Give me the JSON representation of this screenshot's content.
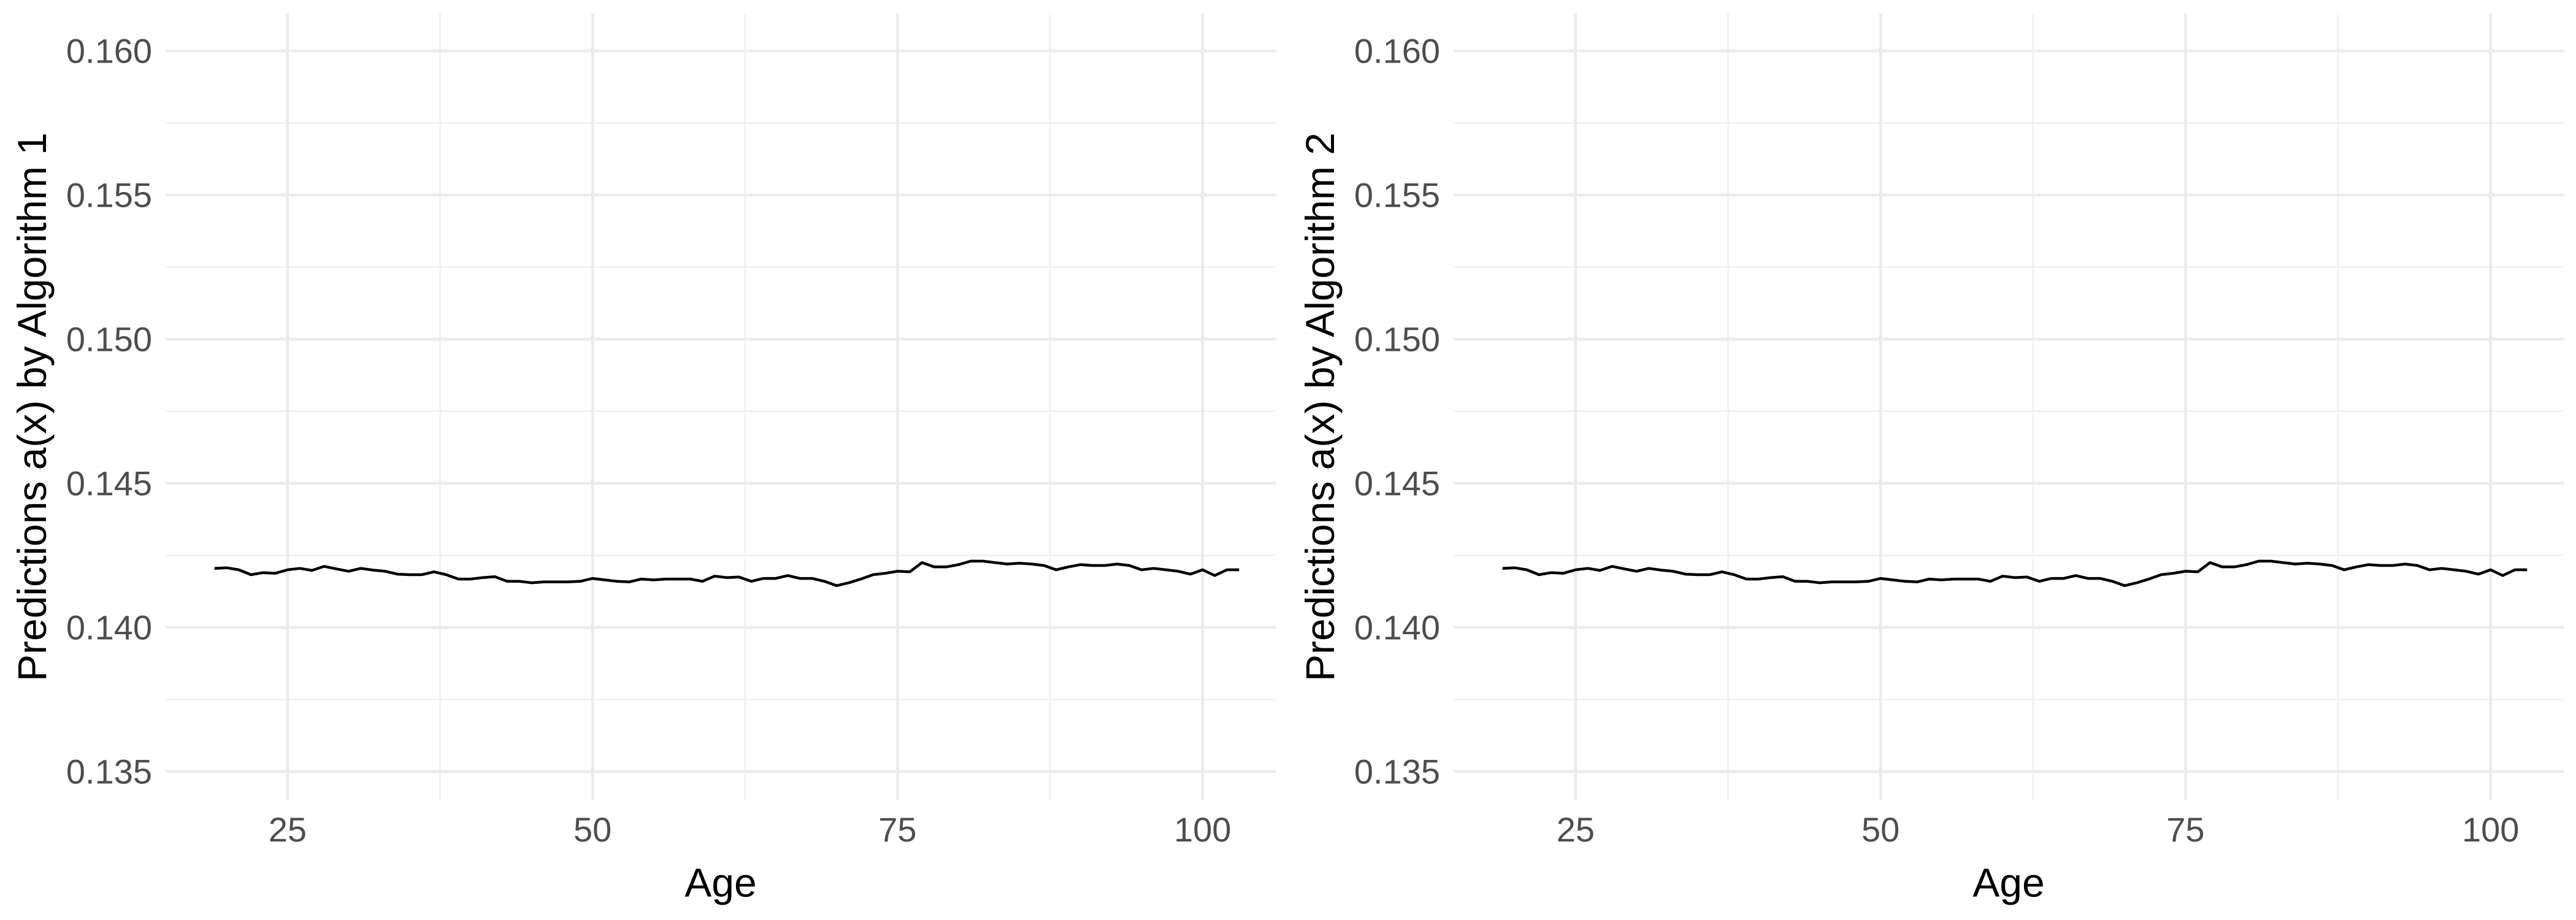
{
  "chart_data": [
    {
      "type": "line",
      "title": "",
      "xlabel": "Age",
      "ylabel": "Predictions a(x) by Algorithm 1",
      "xlim": [
        15,
        106
      ],
      "ylim": [
        0.134,
        0.1613
      ],
      "x_ticks": [
        25,
        50,
        75,
        100
      ],
      "x_tick_labels": [
        "25",
        "50",
        "75",
        "100"
      ],
      "y_ticks": [
        0.135,
        0.14,
        0.145,
        0.15,
        0.155,
        0.16
      ],
      "y_tick_labels": [
        "0.135",
        "0.140",
        "0.145",
        "0.150",
        "0.155",
        "0.160"
      ],
      "grid": true,
      "legend": "none",
      "series": [
        {
          "color": "#000000",
          "x": [
            19,
            20,
            21,
            22,
            23,
            24,
            25,
            26,
            27,
            28,
            29,
            30,
            31,
            32,
            33,
            34,
            35,
            36,
            37,
            38,
            39,
            40,
            41,
            42,
            43,
            44,
            45,
            46,
            47,
            48,
            49,
            50,
            51,
            52,
            53,
            54,
            55,
            56,
            57,
            58,
            59,
            60,
            61,
            62,
            63,
            64,
            65,
            66,
            67,
            68,
            69,
            70,
            71,
            72,
            73,
            74,
            75,
            76,
            77,
            78,
            79,
            80,
            81,
            82,
            83,
            84,
            85,
            86,
            87,
            88,
            89,
            90,
            91,
            92,
            93,
            94,
            95,
            96,
            97,
            98,
            99,
            100,
            101,
            102,
            103
          ],
          "y": [
            0.14205,
            0.14207,
            0.142,
            0.14183,
            0.1419,
            0.14188,
            0.142,
            0.14205,
            0.14198,
            0.14212,
            0.14203,
            0.14195,
            0.14205,
            0.14199,
            0.14195,
            0.14185,
            0.14183,
            0.14183,
            0.14193,
            0.14183,
            0.14168,
            0.14168,
            0.14173,
            0.14176,
            0.1416,
            0.1416,
            0.14155,
            0.14158,
            0.14158,
            0.14158,
            0.1416,
            0.1417,
            0.14165,
            0.1416,
            0.14158,
            0.14168,
            0.14165,
            0.14168,
            0.14168,
            0.14168,
            0.1416,
            0.14178,
            0.14173,
            0.14175,
            0.1416,
            0.1417,
            0.1417,
            0.1418,
            0.1417,
            0.1417,
            0.1416,
            0.14145,
            0.14155,
            0.14168,
            0.14183,
            0.14188,
            0.14195,
            0.14193,
            0.14225,
            0.1421,
            0.1421,
            0.14218,
            0.1423,
            0.1423,
            0.14225,
            0.1422,
            0.14223,
            0.1422,
            0.14215,
            0.142,
            0.1421,
            0.14218,
            0.14215,
            0.14215,
            0.1422,
            0.14215,
            0.142,
            0.14205,
            0.142,
            0.14195,
            0.14185,
            0.142,
            0.1418,
            0.142,
            0.142
          ]
        }
      ]
    },
    {
      "type": "line",
      "title": "",
      "xlabel": "Age",
      "ylabel": "Predictions a(x) by Algorithm 2",
      "xlim": [
        15,
        106
      ],
      "ylim": [
        0.134,
        0.1613
      ],
      "x_ticks": [
        25,
        50,
        75,
        100
      ],
      "x_tick_labels": [
        "25",
        "50",
        "75",
        "100"
      ],
      "y_ticks": [
        0.135,
        0.14,
        0.145,
        0.15,
        0.155,
        0.16
      ],
      "y_tick_labels": [
        "0.135",
        "0.140",
        "0.145",
        "0.150",
        "0.155",
        "0.160"
      ],
      "grid": true,
      "legend": "none",
      "series": [
        {
          "color": "#000000",
          "x": [
            19,
            20,
            21,
            22,
            23,
            24,
            25,
            26,
            27,
            28,
            29,
            30,
            31,
            32,
            33,
            34,
            35,
            36,
            37,
            38,
            39,
            40,
            41,
            42,
            43,
            44,
            45,
            46,
            47,
            48,
            49,
            50,
            51,
            52,
            53,
            54,
            55,
            56,
            57,
            58,
            59,
            60,
            61,
            62,
            63,
            64,
            65,
            66,
            67,
            68,
            69,
            70,
            71,
            72,
            73,
            74,
            75,
            76,
            77,
            78,
            79,
            80,
            81,
            82,
            83,
            84,
            85,
            86,
            87,
            88,
            89,
            90,
            91,
            92,
            93,
            94,
            95,
            96,
            97,
            98,
            99,
            100,
            101,
            102,
            103
          ],
          "y": [
            0.14205,
            0.14207,
            0.142,
            0.14183,
            0.1419,
            0.14188,
            0.142,
            0.14205,
            0.14198,
            0.14212,
            0.14203,
            0.14195,
            0.14205,
            0.14199,
            0.14195,
            0.14185,
            0.14183,
            0.14183,
            0.14193,
            0.14183,
            0.14168,
            0.14168,
            0.14173,
            0.14176,
            0.1416,
            0.1416,
            0.14155,
            0.14158,
            0.14158,
            0.14158,
            0.1416,
            0.1417,
            0.14165,
            0.1416,
            0.14158,
            0.14168,
            0.14165,
            0.14168,
            0.14168,
            0.14168,
            0.1416,
            0.14178,
            0.14173,
            0.14175,
            0.1416,
            0.1417,
            0.1417,
            0.1418,
            0.1417,
            0.1417,
            0.1416,
            0.14145,
            0.14155,
            0.14168,
            0.14183,
            0.14188,
            0.14195,
            0.14193,
            0.14225,
            0.1421,
            0.1421,
            0.14218,
            0.1423,
            0.1423,
            0.14225,
            0.1422,
            0.14223,
            0.1422,
            0.14215,
            0.142,
            0.1421,
            0.14218,
            0.14215,
            0.14215,
            0.1422,
            0.14215,
            0.142,
            0.14205,
            0.142,
            0.14195,
            0.14185,
            0.142,
            0.1418,
            0.142,
            0.142
          ]
        }
      ]
    }
  ]
}
